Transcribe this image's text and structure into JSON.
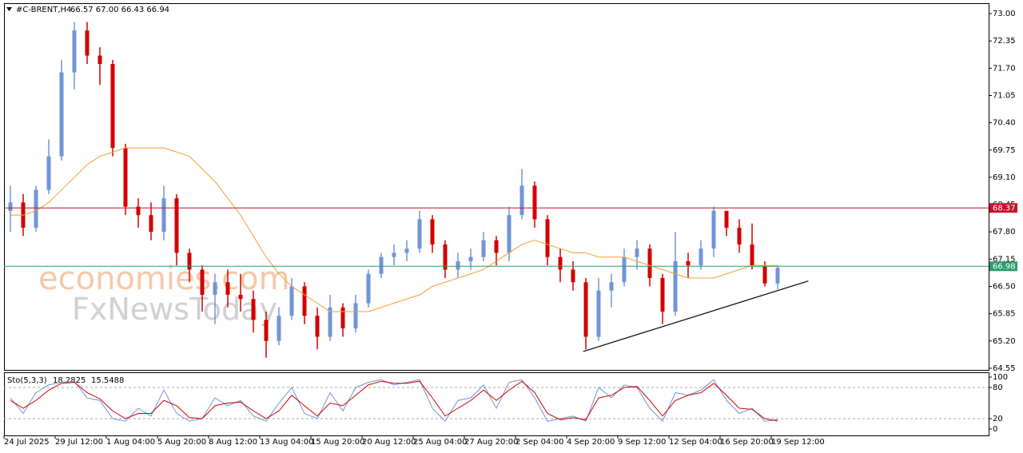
{
  "chart_data": [
    {
      "type": "candlestick",
      "title": "#C-BRENT,H4",
      "quote": "66.57 67.00 66.43 66.94",
      "watermark": [
        "economies.com",
        "FxNewsToday"
      ],
      "up_color": "#6f95d8",
      "down_color": "#d40000",
      "categories": [
        "24 Jul 2025",
        null,
        null,
        null,
        "29 Jul 12:00",
        null,
        null,
        null,
        "1 Aug 04:00",
        null,
        null,
        null,
        "5 Aug 20:00",
        null,
        null,
        null,
        "8 Aug 12:00",
        null,
        null,
        null,
        "13 Aug 04:00",
        null,
        null,
        null,
        "15 Aug 20:00",
        null,
        null,
        null,
        "20 Aug 12:00",
        null,
        null,
        null,
        "25 Aug 04:00",
        null,
        null,
        null,
        "27 Aug 20:00",
        null,
        null,
        null,
        "2 Sep 04:00",
        null,
        null,
        null,
        "4 Sep 20:00",
        null,
        null,
        null,
        "9 Sep 12:00",
        null,
        null,
        null,
        "12 Sep 04:00",
        null,
        null,
        null,
        "16 Sep 20:00",
        null,
        null,
        null,
        "19 Sep 12:00"
      ],
      "open": [
        68.3,
        68.5,
        67.9,
        68.8,
        69.6,
        71.6,
        72.6,
        72.0,
        71.8,
        69.8,
        68.4,
        68.2,
        67.8,
        68.6,
        67.3,
        66.9,
        66.3,
        66.6,
        66.3,
        66.2,
        65.7,
        65.2,
        65.8,
        66.5,
        65.8,
        65.3,
        66.0,
        65.5,
        66.1,
        66.8,
        67.2,
        67.3,
        67.4,
        68.1,
        67.5,
        66.9,
        67.1,
        67.2,
        67.6,
        67.3,
        68.2,
        68.9,
        68.1,
        67.2,
        66.9,
        66.6,
        65.3,
        66.4,
        66.6,
        67.2,
        67.4,
        66.7,
        65.9,
        67.1,
        67.0,
        67.4,
        68.3,
        67.9,
        67.5,
        67.0,
        66.57
      ],
      "high": [
        68.9,
        68.7,
        68.9,
        70.0,
        71.9,
        72.8,
        72.8,
        72.2,
        71.9,
        69.9,
        68.6,
        68.5,
        68.9,
        68.7,
        67.4,
        67.0,
        66.8,
        66.9,
        66.8,
        66.4,
        65.9,
        66.0,
        66.7,
        66.6,
        66.0,
        66.3,
        66.1,
        66.3,
        66.9,
        67.3,
        67.5,
        67.6,
        68.3,
        68.2,
        67.6,
        67.3,
        67.4,
        67.8,
        67.7,
        68.4,
        69.3,
        69.0,
        68.2,
        67.4,
        67.1,
        66.7,
        66.7,
        66.8,
        67.4,
        67.6,
        67.5,
        66.8,
        67.8,
        67.3,
        67.6,
        68.4,
        68.3,
        68.1,
        68.0,
        67.1,
        67.0
      ],
      "low": [
        67.8,
        67.7,
        67.8,
        68.7,
        69.5,
        71.2,
        71.8,
        71.3,
        69.6,
        68.2,
        67.9,
        67.6,
        67.6,
        67.0,
        66.6,
        65.9,
        65.6,
        66.0,
        65.9,
        65.4,
        64.8,
        65.1,
        65.7,
        65.6,
        65.0,
        65.2,
        65.3,
        65.4,
        66.0,
        66.7,
        67.0,
        67.1,
        67.3,
        67.3,
        66.7,
        66.7,
        66.9,
        67.1,
        67.0,
        67.1,
        68.1,
        67.9,
        67.0,
        66.6,
        66.4,
        65.0,
        65.2,
        66.0,
        66.5,
        66.9,
        66.5,
        65.6,
        65.8,
        66.7,
        66.9,
        67.2,
        67.7,
        67.3,
        66.9,
        66.5,
        66.43
      ],
      "close": [
        68.5,
        67.9,
        68.8,
        69.6,
        71.6,
        72.6,
        72.0,
        71.8,
        69.8,
        68.4,
        68.2,
        67.8,
        68.6,
        67.3,
        66.9,
        66.3,
        66.6,
        66.3,
        66.2,
        65.7,
        65.2,
        65.8,
        66.5,
        65.8,
        65.3,
        66.0,
        65.5,
        66.1,
        66.8,
        67.2,
        67.3,
        67.4,
        68.1,
        67.5,
        66.9,
        67.1,
        67.2,
        67.6,
        67.3,
        68.2,
        68.9,
        68.1,
        67.2,
        66.9,
        66.6,
        65.3,
        66.4,
        66.6,
        67.2,
        67.4,
        66.7,
        65.9,
        67.1,
        67.0,
        67.4,
        68.3,
        67.9,
        67.5,
        67.0,
        66.57,
        66.94
      ],
      "moving_average": {
        "color": "#f0a030",
        "values": [
          68.2,
          68.2,
          68.3,
          68.5,
          68.8,
          69.1,
          69.4,
          69.6,
          69.7,
          69.8,
          69.8,
          69.8,
          69.8,
          69.7,
          69.6,
          69.3,
          69.0,
          68.6,
          68.2,
          67.7,
          67.2,
          66.8,
          66.5,
          66.3,
          66.1,
          65.9,
          65.9,
          65.9,
          65.9,
          66.0,
          66.1,
          66.2,
          66.3,
          66.5,
          66.6,
          66.7,
          66.8,
          66.9,
          67.1,
          67.3,
          67.5,
          67.6,
          67.5,
          67.4,
          67.3,
          67.3,
          67.2,
          67.2,
          67.2,
          67.1,
          67.0,
          66.9,
          66.8,
          66.7,
          66.7,
          66.7,
          66.8,
          66.9,
          67.0,
          67.0,
          67.0
        ]
      },
      "levels": [
        {
          "value": 68.37,
          "color": "#c8102e"
        },
        {
          "value": 66.98,
          "color": "#2a9d6a"
        }
      ],
      "trendline": {
        "x": [
          44.8,
          62.4
        ],
        "values": [
          64.95,
          66.63
        ]
      },
      "ylim": [
        64.51,
        73.23
      ],
      "yticks": [
        {
          "value": 73,
          "label": "73.00"
        },
        72.35,
        {
          "value": 71.7,
          "label": "71.70"
        },
        71.05,
        {
          "value": 70.4,
          "label": "70.40"
        },
        69.75,
        {
          "value": 69.1,
          "label": "69.10"
        },
        68.45,
        {
          "value": 67.8,
          "label": "67.80"
        },
        67.15,
        {
          "value": 66.5,
          "label": "66.50"
        },
        65.85,
        {
          "value": 65.2,
          "label": "65.20"
        },
        64.55
      ]
    },
    {
      "type": "line",
      "title": "Sto(5,3,3)",
      "series": [
        {
          "name": "main",
          "color": "#6f95d8",
          "values": [
            60,
            30,
            70,
            85,
            90,
            92,
            60,
            55,
            20,
            15,
            40,
            25,
            75,
            30,
            15,
            20,
            60,
            45,
            55,
            25,
            15,
            50,
            80,
            30,
            20,
            70,
            35,
            80,
            90,
            95,
            85,
            90,
            95,
            40,
            15,
            55,
            60,
            85,
            40,
            90,
            95,
            60,
            15,
            20,
            25,
            15,
            80,
            60,
            85,
            80,
            40,
            15,
            70,
            65,
            75,
            95,
            55,
            30,
            40,
            15,
            18.2825
          ]
        },
        {
          "name": "signal",
          "color": "#d40000",
          "values": [
            55,
            40,
            55,
            75,
            88,
            90,
            70,
            58,
            35,
            20,
            30,
            30,
            55,
            45,
            22,
            20,
            45,
            50,
            52,
            35,
            20,
            35,
            65,
            45,
            25,
            50,
            45,
            65,
            85,
            92,
            88,
            88,
            92,
            60,
            25,
            40,
            55,
            75,
            55,
            75,
            92,
            70,
            30,
            18,
            22,
            18,
            60,
            65,
            80,
            82,
            55,
            25,
            55,
            65,
            70,
            88,
            65,
            40,
            38,
            20,
            15.5488
          ]
        }
      ],
      "ylim": [
        -12.3,
        107.7
      ],
      "yticks": [
        100,
        80,
        20,
        0
      ],
      "dashed_levels": [
        80,
        20
      ]
    }
  ]
}
